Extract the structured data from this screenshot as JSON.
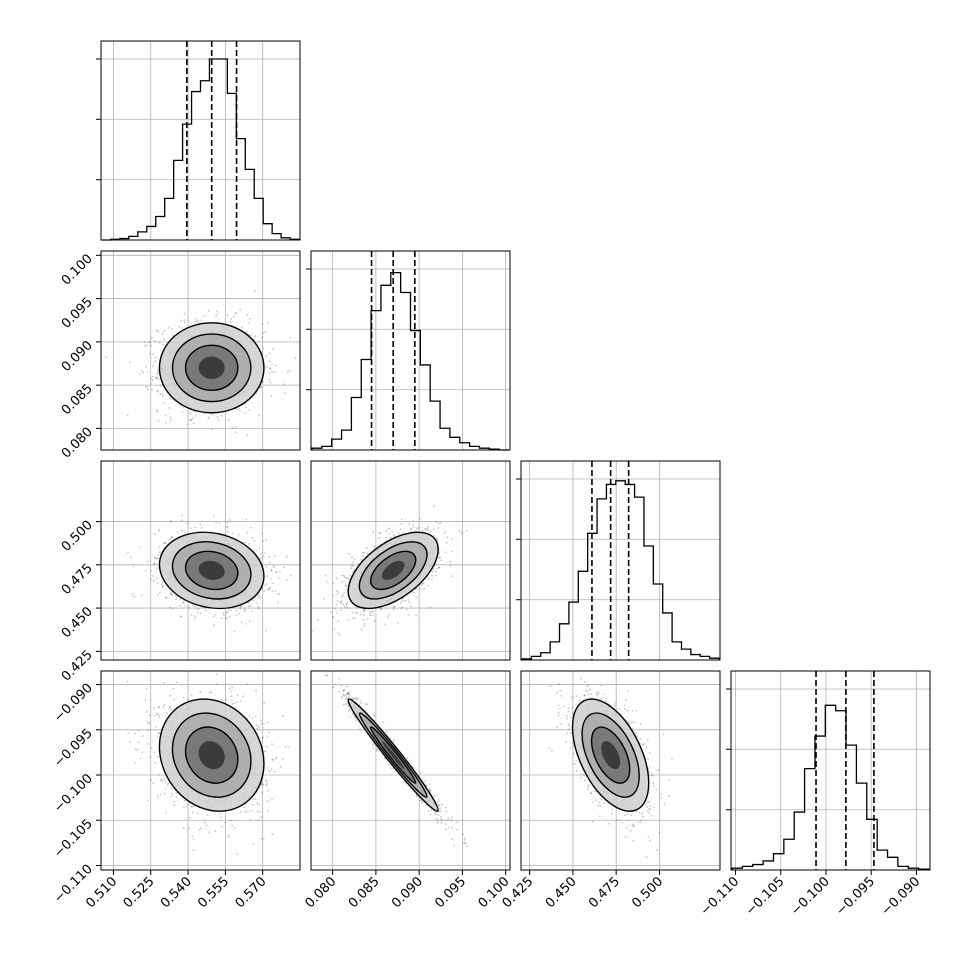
{
  "chart_data": {
    "type": "corner",
    "description_params": 4,
    "axes": [
      {
        "range": [
          0.505,
          0.585
        ],
        "ticks": [
          0.51,
          0.525,
          0.54,
          0.555,
          0.57
        ],
        "tick_labels": [
          "0.510",
          "0.525",
          "0.540",
          "0.555",
          "0.570"
        ]
      },
      {
        "range": [
          0.0775,
          0.1005
        ],
        "ticks": [
          0.08,
          0.085,
          0.09,
          0.095,
          0.1
        ],
        "tick_labels": [
          "0.080",
          "0.085",
          "0.090",
          "0.095",
          "0.100"
        ]
      },
      {
        "range": [
          0.42,
          0.535
        ],
        "ticks": [
          0.425,
          0.45,
          0.475,
          0.5
        ],
        "tick_labels": [
          "0.425",
          "0.450",
          "0.475",
          "0.500"
        ]
      },
      {
        "range": [
          -0.1105,
          -0.0885
        ],
        "ticks": [
          -0.11,
          -0.105,
          -0.1,
          -0.095,
          -0.09
        ],
        "tick_labels": [
          "−0.110",
          "−0.105",
          "−0.100",
          "−0.095",
          "−0.090"
        ]
      }
    ],
    "quantiles": [
      [
        0.5395,
        0.5495,
        0.5595
      ],
      [
        0.0845,
        0.087,
        0.0895
      ],
      [
        0.461,
        0.4718,
        0.4822
      ],
      [
        -0.1011,
        -0.0978,
        -0.0947
      ]
    ],
    "histograms": [
      [
        0.0,
        0.004,
        0.008,
        0.02,
        0.045,
        0.075,
        0.13,
        0.23,
        0.44,
        0.64,
        0.82,
        0.88,
        1.0,
        1.0,
        0.81,
        0.56,
        0.39,
        0.23,
        0.09,
        0.035,
        0.012,
        0.004
      ],
      [
        0.01,
        0.02,
        0.06,
        0.11,
        0.29,
        0.5,
        0.77,
        0.91,
        0.98,
        0.87,
        0.66,
        0.47,
        0.27,
        0.12,
        0.07,
        0.04,
        0.02,
        0.01,
        0.005,
        0.0
      ],
      [
        0.006,
        0.02,
        0.04,
        0.1,
        0.2,
        0.32,
        0.49,
        0.7,
        0.89,
        0.97,
        0.99,
        0.97,
        0.9,
        0.63,
        0.42,
        0.26,
        0.1,
        0.06,
        0.03,
        0.02,
        0.01
      ],
      [
        0.01,
        0.02,
        0.03,
        0.05,
        0.09,
        0.17,
        0.32,
        0.56,
        0.74,
        0.91,
        0.88,
        0.69,
        0.48,
        0.28,
        0.11,
        0.07,
        0.02,
        0.01,
        0.005
      ]
    ],
    "pairs": [
      {
        "row": 1,
        "col": 0,
        "mean": [
          0.5495,
          0.087
        ],
        "sd": [
          0.0105,
          0.0026
        ],
        "corr": 0.0
      },
      {
        "row": 2,
        "col": 0,
        "mean": [
          0.5495,
          0.4718
        ],
        "sd": [
          0.0105,
          0.011
        ],
        "corr": -0.15
      },
      {
        "row": 2,
        "col": 1,
        "mean": [
          0.087,
          0.4718
        ],
        "sd": [
          0.0026,
          0.011
        ],
        "corr": 0.55
      },
      {
        "row": 3,
        "col": 0,
        "mean": [
          0.5495,
          -0.0978
        ],
        "sd": [
          0.0105,
          0.0031
        ],
        "corr": -0.15
      },
      {
        "row": 3,
        "col": 1,
        "mean": [
          0.087,
          -0.0978
        ],
        "sd": [
          0.0026,
          0.0031
        ],
        "corr": -0.98
      },
      {
        "row": 3,
        "col": 2,
        "mean": [
          0.4718,
          -0.0978
        ],
        "sd": [
          0.011,
          0.0031
        ],
        "corr": -0.5
      }
    ],
    "contour_levels_sigma": [
      0.5,
      1.0,
      1.5,
      2.0
    ],
    "grid": true,
    "legend": "none"
  }
}
